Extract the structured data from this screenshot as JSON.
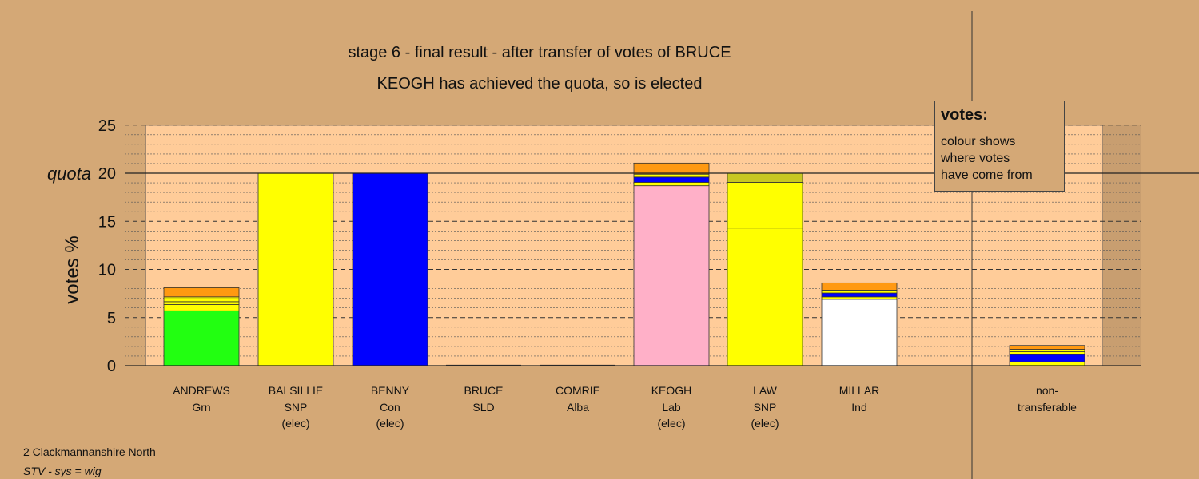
{
  "chart_data": {
    "type": "bar",
    "title": "stage 6 - final result - after transfer of votes of BRUCE",
    "subtitle": "KEOGH has achieved the quota, so is elected",
    "ylabel": "votes %",
    "ylim": [
      0,
      25
    ],
    "yticks": [
      0,
      5,
      10,
      15,
      20,
      25
    ],
    "quota": 20,
    "quota_label": "quota",
    "stacked": true,
    "grid": "dashed",
    "candidates": [
      {
        "name": "ANDREWS",
        "party": "Grn",
        "status": "",
        "segments": [
          {
            "color": "#22ff11",
            "value": 5.7
          },
          {
            "color": "#ffff00",
            "value": 0.65
          },
          {
            "color": "#ffff00",
            "value": 0.3
          },
          {
            "color": "#ffff00",
            "value": 0.3
          },
          {
            "color": "#ffff00",
            "value": 0.2
          },
          {
            "color": "#ff9911",
            "value": 0.95
          }
        ]
      },
      {
        "name": "BALSILLIE",
        "party": "SNP",
        "status": "(elec)",
        "segments": [
          {
            "color": "#ffff00",
            "value": 20
          }
        ]
      },
      {
        "name": "BENNY",
        "party": "Con",
        "status": "(elec)",
        "segments": [
          {
            "color": "#0000ff",
            "value": 20
          }
        ]
      },
      {
        "name": "BRUCE",
        "party": "SLD",
        "status": "",
        "segments": []
      },
      {
        "name": "COMRIE",
        "party": "Alba",
        "status": "",
        "segments": []
      },
      {
        "name": "KEOGH",
        "party": "Lab",
        "status": "(elec)",
        "segments": [
          {
            "color": "#ffb0c8",
            "value": 18.7
          },
          {
            "color": "#ffff00",
            "value": 0.35
          },
          {
            "color": "#0000ff",
            "value": 0.55
          },
          {
            "color": "#ffff00",
            "value": 0.3
          },
          {
            "color": "#ff9911",
            "value": 1.15
          }
        ]
      },
      {
        "name": "LAW",
        "party": "SNP",
        "status": "(elec)",
        "segments": [
          {
            "color": "#ffff00",
            "value": 14.3
          },
          {
            "color": "#ffff00",
            "value": 4.75
          },
          {
            "color": "#c8c822",
            "value": 0.95
          }
        ]
      },
      {
        "name": "MILLAR",
        "party": "Ind",
        "status": "",
        "segments": [
          {
            "color": "#ffffff",
            "value": 6.9
          },
          {
            "color": "#ffff00",
            "value": 0.25
          },
          {
            "color": "#0000ff",
            "value": 0.4
          },
          {
            "color": "#ffff00",
            "value": 0.3
          },
          {
            "color": "#ff9911",
            "value": 0.75
          }
        ]
      },
      {
        "name": "non-",
        "party": "transferable",
        "status": "",
        "segments": [
          {
            "color": "#ffff00",
            "value": 0.4
          },
          {
            "color": "#0000ff",
            "value": 0.75
          },
          {
            "color": "#ffff00",
            "value": 0.3
          },
          {
            "color": "#ffff00",
            "value": 0.25
          },
          {
            "color": "#ff9911",
            "value": 0.4
          }
        ]
      }
    ]
  },
  "legend": {
    "title": "votes:",
    "lines": [
      "colour shows",
      "where votes",
      "have come from"
    ]
  },
  "footer": {
    "constituency": "2 Clackmannanshire North",
    "system": "STV - sys = wig"
  },
  "colors": {
    "background": "#d4a876",
    "plot_area": "#ffcc99"
  }
}
